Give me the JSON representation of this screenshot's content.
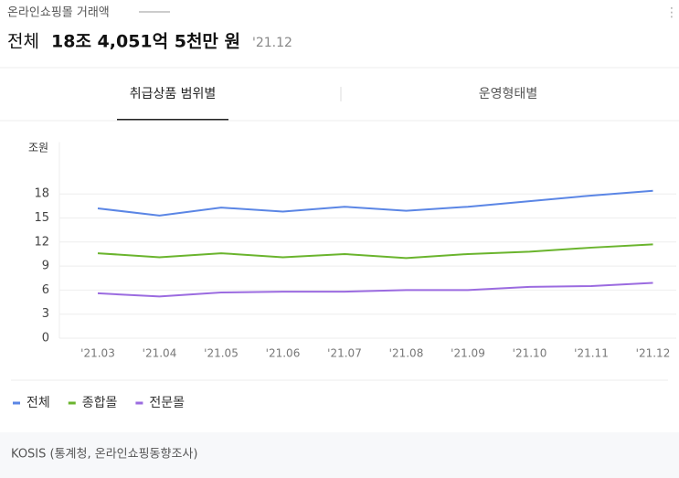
{
  "header": {
    "label": "온라인쇼핑몰 거래액",
    "total_label": "전체",
    "total_value": "18조 4,051억 5천만 원",
    "period": "'21.12"
  },
  "tabs": [
    "취급상품 범위별",
    "운영형태별"
  ],
  "chart_data": {
    "type": "line",
    "y_label": "조원",
    "categories": [
      "'21.03",
      "'21.04",
      "'21.05",
      "'21.06",
      "'21.07",
      "'21.08",
      "'21.09",
      "'21.10",
      "'21.11",
      "'21.12"
    ],
    "series": [
      {
        "name": "전체",
        "color": "#5b86e5",
        "values": [
          16.2,
          15.3,
          16.3,
          15.8,
          16.4,
          15.9,
          16.4,
          17.1,
          17.8,
          18.4
        ]
      },
      {
        "name": "종합몰",
        "color": "#6ab42d",
        "values": [
          10.6,
          10.1,
          10.6,
          10.1,
          10.5,
          10.0,
          10.5,
          10.8,
          11.3,
          11.7
        ]
      },
      {
        "name": "전문몰",
        "color": "#9b6be0",
        "values": [
          5.6,
          5.2,
          5.7,
          5.8,
          5.8,
          6.0,
          6.0,
          6.4,
          6.5,
          6.9
        ]
      }
    ],
    "ylim": [
      0,
      24
    ],
    "yticks": [
      0,
      3,
      6,
      9,
      12,
      15,
      18
    ],
    "grid": true
  },
  "footer": {
    "source": "KOSIS (통계청, 온라인쇼핑동향조사)"
  }
}
